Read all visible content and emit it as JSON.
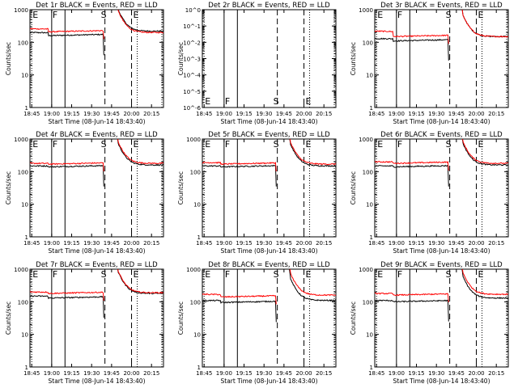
{
  "figure": {
    "ylabel": "Counts/sec",
    "xlabel": "Start Time (08-Jun-14 18:43:40)",
    "x_tick_labels": [
      "18:45",
      "19:00",
      "19:15",
      "19:30",
      "19:45",
      "20:00",
      "20:15"
    ],
    "y_tick_labels": [
      "1",
      "10",
      "100",
      "1000"
    ],
    "y_tick_labels_2r": [
      "10^-6",
      "10^-5",
      "10^-4",
      "10^-3",
      "10^-2",
      "10^-1",
      "10^0"
    ],
    "marker_labels": [
      "E",
      "F",
      "S",
      "E"
    ],
    "colors": {
      "events": "#000000",
      "lld": "#ff0000"
    }
  },
  "chart_data": [
    {
      "type": "line",
      "title": "Det 1r BLACK = Events, RED = LLD",
      "ylim": [
        1,
        1000
      ],
      "log_y": true,
      "x_range": [
        "18:43:40",
        "20:24"
      ],
      "markers": {
        "E": "18:45",
        "F": "19:00",
        "solid": "19:10",
        "S": "19:40",
        "E2": "20:00"
      },
      "series": [
        {
          "name": "Events",
          "values": {
            "pre": 160,
            "peak_pre": 200,
            "post": 220
          }
        },
        {
          "name": "LLD",
          "values": {
            "pre": 210,
            "peak_pre": 260,
            "post": 200
          }
        }
      ]
    },
    {
      "type": "line",
      "title": "Det 2r BLACK = Events, RED = LLD",
      "ylim": [
        1e-06,
        1
      ],
      "log_y": true,
      "x_range": [
        "18:43:40",
        "20:24"
      ],
      "markers": {
        "E": "18:45",
        "F": "19:00",
        "solid": "19:10",
        "S": "19:40",
        "E2": "20:00"
      },
      "series": []
    },
    {
      "type": "line",
      "title": "Det 3r BLACK = Events, RED = LLD",
      "ylim": [
        1,
        1000
      ],
      "log_y": true,
      "x_range": [
        "18:43:40",
        "20:24"
      ],
      "markers": {
        "E": "18:45",
        "F": "19:00",
        "solid": "19:10",
        "S": "19:40",
        "E2": "20:00"
      },
      "series": [
        {
          "name": "Events",
          "values": {
            "pre": 110,
            "peak_pre": 130,
            "post": 150
          }
        },
        {
          "name": "LLD",
          "values": {
            "pre": 150,
            "peak_pre": 220,
            "post": 150
          }
        }
      ]
    },
    {
      "type": "line",
      "title": "Det 4r BLACK = Events, RED = LLD",
      "ylim": [
        1,
        1000
      ],
      "log_y": true,
      "x_range": [
        "18:43:40",
        "20:24"
      ],
      "markers": {
        "E": "18:45",
        "F": "19:00",
        "solid": "19:10",
        "S": "19:40",
        "E2": "20:00"
      },
      "series": [
        {
          "name": "Events",
          "values": {
            "pre": 140,
            "peak_pre": 150,
            "post": 160
          }
        },
        {
          "name": "LLD",
          "values": {
            "pre": 170,
            "peak_pre": 180,
            "post": 180
          }
        }
      ]
    },
    {
      "type": "line",
      "title": "Det 5r BLACK = Events, RED = LLD",
      "ylim": [
        1,
        1000
      ],
      "log_y": true,
      "x_range": [
        "18:43:40",
        "20:24"
      ],
      "markers": {
        "E": "18:45",
        "F": "19:00",
        "solid": "19:10",
        "S": "19:40",
        "E2": "20:00"
      },
      "series": [
        {
          "name": "Events",
          "values": {
            "pre": 140,
            "peak_pre": 150,
            "post": 150
          }
        },
        {
          "name": "LLD",
          "values": {
            "pre": 170,
            "peak_pre": 190,
            "post": 170
          }
        }
      ]
    },
    {
      "type": "line",
      "title": "Det 6r BLACK = Events, RED = LLD",
      "ylim": [
        1,
        1000
      ],
      "log_y": true,
      "x_range": [
        "18:43:40",
        "20:24"
      ],
      "markers": {
        "E": "18:45",
        "F": "19:00",
        "solid": "19:10",
        "S": "19:40",
        "E2": "20:00"
      },
      "series": [
        {
          "name": "Events",
          "values": {
            "pre": 140,
            "peak_pre": 150,
            "post": 160
          }
        },
        {
          "name": "LLD",
          "values": {
            "pre": 180,
            "peak_pre": 200,
            "post": 180
          }
        }
      ]
    },
    {
      "type": "line",
      "title": "Det 7r BLACK = Events, RED = LLD",
      "ylim": [
        1,
        1000
      ],
      "log_y": true,
      "x_range": [
        "18:43:40",
        "20:24"
      ],
      "markers": {
        "E": "18:45",
        "F": "19:00",
        "solid": "19:10",
        "S": "19:40",
        "E2": "20:00"
      },
      "series": [
        {
          "name": "Events",
          "values": {
            "pre": 130,
            "peak_pre": 150,
            "post": 180
          }
        },
        {
          "name": "LLD",
          "values": {
            "pre": 180,
            "peak_pre": 200,
            "post": 190
          }
        }
      ]
    },
    {
      "type": "line",
      "title": "Det 8r BLACK = Events, RED = LLD",
      "ylim": [
        1,
        1000
      ],
      "log_y": true,
      "x_range": [
        "18:43:40",
        "20:24"
      ],
      "markers": {
        "E": "18:45",
        "F": "19:00",
        "solid": "19:10",
        "S": "19:40",
        "E2": "20:00"
      },
      "series": [
        {
          "name": "Events",
          "values": {
            "pre": 95,
            "peak_pre": 110,
            "post": 110
          }
        },
        {
          "name": "LLD",
          "values": {
            "pre": 140,
            "peak_pre": 170,
            "post": 160
          }
        }
      ]
    },
    {
      "type": "line",
      "title": "Det 9r BLACK = Events, RED = LLD",
      "ylim": [
        1,
        1000
      ],
      "log_y": true,
      "x_range": [
        "18:43:40",
        "20:24"
      ],
      "markers": {
        "E": "18:45",
        "F": "19:00",
        "solid": "19:10",
        "S": "19:40",
        "E2": "20:00"
      },
      "series": [
        {
          "name": "Events",
          "values": {
            "pre": 100,
            "peak_pre": 110,
            "post": 130
          }
        },
        {
          "name": "LLD",
          "values": {
            "pre": 160,
            "peak_pre": 180,
            "post": 170
          }
        }
      ]
    }
  ]
}
